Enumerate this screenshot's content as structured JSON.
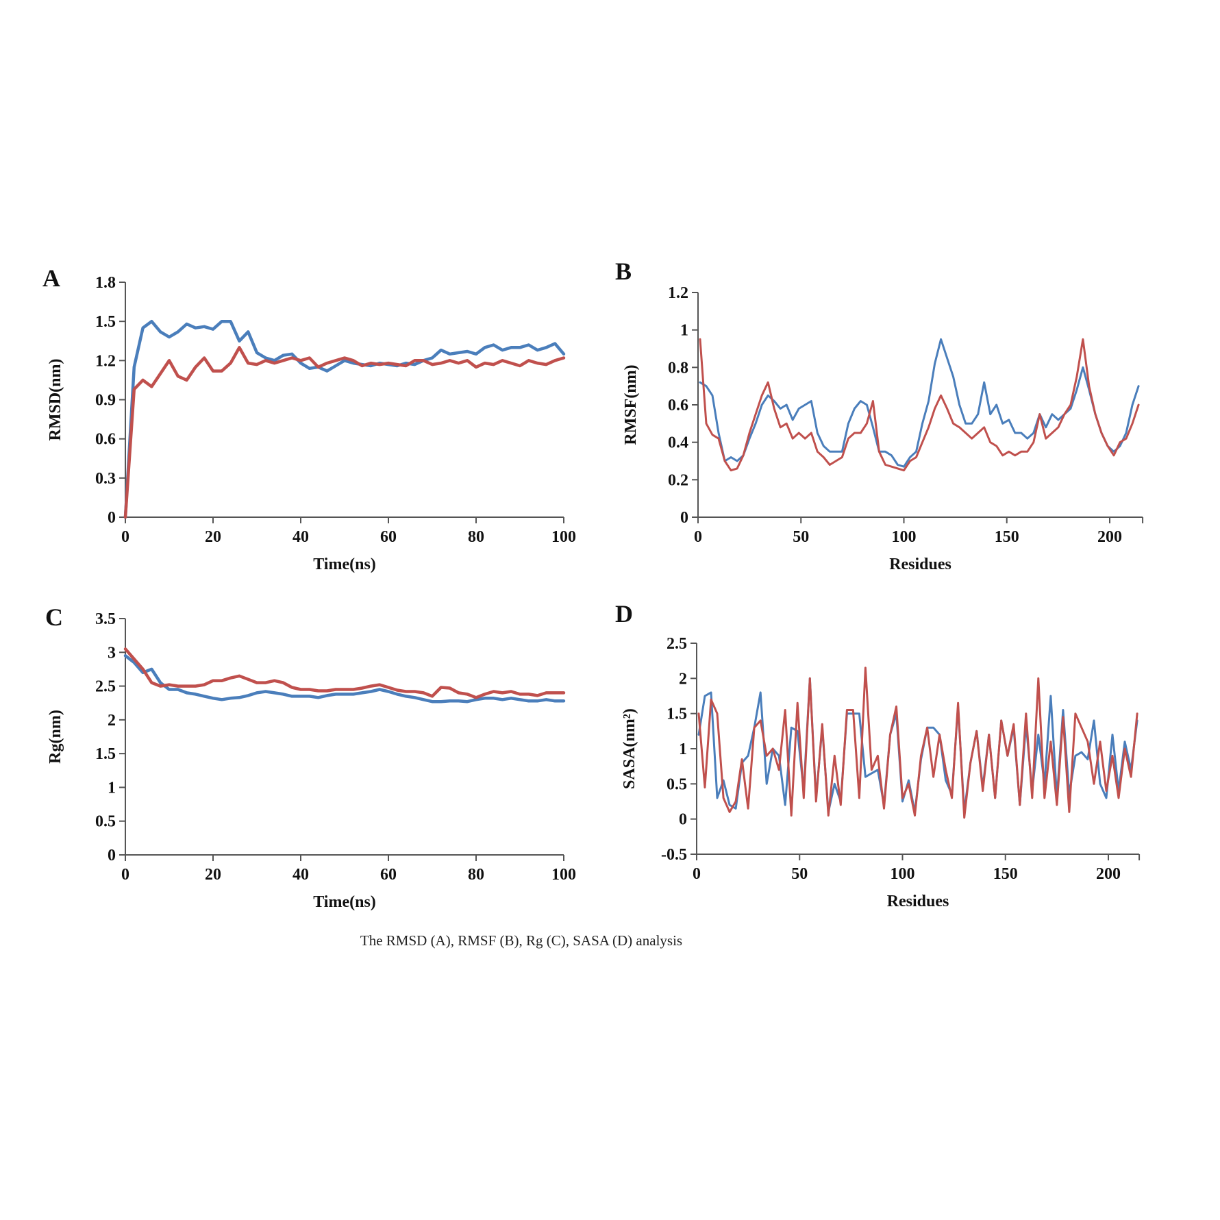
{
  "caption": "The RMSD (A), RMSF (B), Rg (C), SASA (D) analysis",
  "colors": {
    "series1": "#4a7ebb",
    "series2": "#c0504d",
    "axis": "#555555"
  },
  "chart_data": [
    {
      "panel": "A",
      "type": "line",
      "xlabel": "Time(ns)",
      "ylabel": "RMSD(nm)",
      "xlim": [
        0,
        100
      ],
      "ylim": [
        0,
        1.8
      ],
      "xticks": [
        "0",
        "20",
        "40",
        "60",
        "80",
        "100"
      ],
      "yticks": [
        "0",
        "0.3",
        "0.6",
        "0.9",
        "1.2",
        "1.5",
        "1.8"
      ],
      "x": [
        0,
        2,
        4,
        6,
        8,
        10,
        12,
        14,
        16,
        18,
        20,
        22,
        24,
        26,
        28,
        30,
        32,
        34,
        36,
        38,
        40,
        42,
        44,
        46,
        48,
        50,
        52,
        54,
        56,
        58,
        60,
        62,
        64,
        66,
        68,
        70,
        72,
        74,
        76,
        78,
        80,
        82,
        84,
        86,
        88,
        90,
        92,
        94,
        96,
        98,
        100
      ],
      "series": [
        {
          "name": "blue",
          "color": "#4a7ebb",
          "values": [
            0,
            1.15,
            1.45,
            1.5,
            1.42,
            1.38,
            1.42,
            1.48,
            1.45,
            1.46,
            1.44,
            1.5,
            1.5,
            1.35,
            1.42,
            1.26,
            1.22,
            1.2,
            1.24,
            1.25,
            1.18,
            1.14,
            1.15,
            1.12,
            1.16,
            1.2,
            1.18,
            1.17,
            1.16,
            1.18,
            1.17,
            1.16,
            1.18,
            1.17,
            1.2,
            1.22,
            1.28,
            1.25,
            1.26,
            1.27,
            1.25,
            1.3,
            1.32,
            1.28,
            1.3,
            1.3,
            1.32,
            1.28,
            1.3,
            1.33,
            1.25
          ]
        },
        {
          "name": "red",
          "color": "#c0504d",
          "values": [
            0,
            0.98,
            1.05,
            1.0,
            1.1,
            1.2,
            1.08,
            1.05,
            1.15,
            1.22,
            1.12,
            1.12,
            1.18,
            1.3,
            1.18,
            1.17,
            1.2,
            1.18,
            1.2,
            1.22,
            1.2,
            1.22,
            1.15,
            1.18,
            1.2,
            1.22,
            1.2,
            1.16,
            1.18,
            1.17,
            1.18,
            1.17,
            1.16,
            1.2,
            1.2,
            1.17,
            1.18,
            1.2,
            1.18,
            1.2,
            1.15,
            1.18,
            1.17,
            1.2,
            1.18,
            1.16,
            1.2,
            1.18,
            1.17,
            1.2,
            1.22
          ]
        }
      ]
    },
    {
      "panel": "B",
      "type": "line",
      "xlabel": "Residues",
      "ylabel": "RMSF(nm)",
      "xlim": [
        0,
        216
      ],
      "ylim": [
        0,
        1.2
      ],
      "xticks": [
        "0",
        "50",
        "100",
        "150",
        "200"
      ],
      "yticks": [
        "0",
        "0.2",
        "0.4",
        "0.6",
        "0.8",
        "1",
        "1.2"
      ],
      "x": [
        1,
        4,
        7,
        10,
        13,
        16,
        19,
        22,
        25,
        28,
        31,
        34,
        37,
        40,
        43,
        46,
        49,
        52,
        55,
        58,
        61,
        64,
        67,
        70,
        73,
        76,
        79,
        82,
        85,
        88,
        91,
        94,
        97,
        100,
        103,
        106,
        109,
        112,
        115,
        118,
        121,
        124,
        127,
        130,
        133,
        136,
        139,
        142,
        145,
        148,
        151,
        154,
        157,
        160,
        163,
        166,
        169,
        172,
        175,
        178,
        181,
        184,
        187,
        190,
        193,
        196,
        199,
        202,
        205,
        208,
        211,
        214
      ],
      "series": [
        {
          "name": "blue",
          "color": "#4a7ebb",
          "values": [
            0.72,
            0.7,
            0.65,
            0.45,
            0.3,
            0.32,
            0.3,
            0.33,
            0.42,
            0.5,
            0.6,
            0.65,
            0.62,
            0.58,
            0.6,
            0.52,
            0.58,
            0.6,
            0.62,
            0.45,
            0.38,
            0.35,
            0.35,
            0.35,
            0.5,
            0.58,
            0.62,
            0.6,
            0.48,
            0.35,
            0.35,
            0.33,
            0.28,
            0.27,
            0.32,
            0.35,
            0.5,
            0.62,
            0.82,
            0.95,
            0.85,
            0.75,
            0.6,
            0.5,
            0.5,
            0.55,
            0.72,
            0.55,
            0.6,
            0.5,
            0.52,
            0.45,
            0.45,
            0.42,
            0.45,
            0.55,
            0.48,
            0.55,
            0.52,
            0.55,
            0.58,
            0.68,
            0.8,
            0.68,
            0.55,
            0.45,
            0.38,
            0.35,
            0.38,
            0.45,
            0.6,
            0.7
          ]
        },
        {
          "name": "red",
          "color": "#c0504d",
          "values": [
            0.95,
            0.5,
            0.44,
            0.42,
            0.3,
            0.25,
            0.26,
            0.33,
            0.45,
            0.55,
            0.65,
            0.72,
            0.58,
            0.48,
            0.5,
            0.42,
            0.45,
            0.42,
            0.45,
            0.35,
            0.32,
            0.28,
            0.3,
            0.32,
            0.42,
            0.45,
            0.45,
            0.5,
            0.62,
            0.35,
            0.28,
            0.27,
            0.26,
            0.25,
            0.3,
            0.32,
            0.4,
            0.48,
            0.58,
            0.65,
            0.58,
            0.5,
            0.48,
            0.45,
            0.42,
            0.45,
            0.48,
            0.4,
            0.38,
            0.33,
            0.35,
            0.33,
            0.35,
            0.35,
            0.4,
            0.55,
            0.42,
            0.45,
            0.48,
            0.55,
            0.6,
            0.75,
            0.95,
            0.7,
            0.55,
            0.45,
            0.38,
            0.33,
            0.4,
            0.42,
            0.5,
            0.6
          ]
        }
      ]
    },
    {
      "panel": "C",
      "type": "line",
      "xlabel": "Time(ns)",
      "ylabel": "Rg(nm)",
      "xlim": [
        0,
        100
      ],
      "ylim": [
        0,
        3.5
      ],
      "xticks": [
        "0",
        "20",
        "40",
        "60",
        "80",
        "100"
      ],
      "yticks": [
        "0",
        "0.5",
        "1",
        "1.5",
        "2",
        "2.5",
        "3",
        "3.5"
      ],
      "x": [
        0,
        2,
        4,
        6,
        8,
        10,
        12,
        14,
        16,
        18,
        20,
        22,
        24,
        26,
        28,
        30,
        32,
        34,
        36,
        38,
        40,
        42,
        44,
        46,
        48,
        50,
        52,
        54,
        56,
        58,
        60,
        62,
        64,
        66,
        68,
        70,
        72,
        74,
        76,
        78,
        80,
        82,
        84,
        86,
        88,
        90,
        92,
        94,
        96,
        98,
        100
      ],
      "series": [
        {
          "name": "blue",
          "color": "#4a7ebb",
          "values": [
            2.95,
            2.85,
            2.7,
            2.75,
            2.55,
            2.45,
            2.45,
            2.4,
            2.38,
            2.35,
            2.32,
            2.3,
            2.32,
            2.33,
            2.36,
            2.4,
            2.42,
            2.4,
            2.38,
            2.35,
            2.35,
            2.35,
            2.33,
            2.36,
            2.38,
            2.38,
            2.38,
            2.4,
            2.42,
            2.45,
            2.42,
            2.38,
            2.35,
            2.33,
            2.3,
            2.27,
            2.27,
            2.28,
            2.28,
            2.27,
            2.3,
            2.32,
            2.32,
            2.3,
            2.32,
            2.3,
            2.28,
            2.28,
            2.3,
            2.28,
            2.28
          ]
        },
        {
          "name": "red",
          "color": "#c0504d",
          "values": [
            3.05,
            2.9,
            2.75,
            2.55,
            2.5,
            2.52,
            2.5,
            2.5,
            2.5,
            2.52,
            2.58,
            2.58,
            2.62,
            2.65,
            2.6,
            2.55,
            2.55,
            2.58,
            2.55,
            2.48,
            2.45,
            2.45,
            2.43,
            2.43,
            2.45,
            2.45,
            2.45,
            2.47,
            2.5,
            2.52,
            2.48,
            2.44,
            2.42,
            2.42,
            2.4,
            2.35,
            2.48,
            2.47,
            2.4,
            2.38,
            2.33,
            2.38,
            2.42,
            2.4,
            2.42,
            2.38,
            2.38,
            2.36,
            2.4,
            2.4,
            2.4
          ]
        }
      ]
    },
    {
      "panel": "D",
      "type": "line",
      "xlabel": "Residues",
      "ylabel": "SASA(nm²)",
      "xlim": [
        0,
        215
      ],
      "ylim": [
        -0.5,
        2.5
      ],
      "xticks": [
        "0",
        "50",
        "100",
        "150",
        "200"
      ],
      "yticks": [
        "-0.5",
        "0",
        "0.5",
        "1",
        "1.5",
        "2",
        "2.5"
      ],
      "x": [
        1,
        4,
        7,
        10,
        13,
        16,
        19,
        22,
        25,
        28,
        31,
        34,
        37,
        40,
        43,
        46,
        49,
        52,
        55,
        58,
        61,
        64,
        67,
        70,
        73,
        76,
        79,
        82,
        85,
        88,
        91,
        94,
        97,
        100,
        103,
        106,
        109,
        112,
        115,
        118,
        121,
        124,
        127,
        130,
        133,
        136,
        139,
        142,
        145,
        148,
        151,
        154,
        157,
        160,
        163,
        166,
        169,
        172,
        175,
        178,
        181,
        184,
        187,
        190,
        193,
        196,
        199,
        202,
        205,
        208,
        211,
        214
      ],
      "series": [
        {
          "name": "blue",
          "color": "#4a7ebb",
          "values": [
            1.2,
            1.75,
            1.8,
            0.3,
            0.55,
            0.2,
            0.15,
            0.8,
            0.9,
            1.3,
            1.8,
            0.5,
            1.0,
            0.9,
            0.2,
            1.3,
            1.25,
            0.4,
            2.0,
            0.3,
            1.3,
            0.1,
            0.5,
            0.25,
            1.5,
            1.5,
            1.5,
            0.6,
            0.65,
            0.7,
            0.2,
            1.2,
            1.5,
            0.25,
            0.55,
            0.1,
            0.85,
            1.3,
            1.3,
            1.2,
            0.55,
            0.35,
            1.6,
            0.1,
            0.8,
            1.25,
            0.45,
            1.2,
            0.3,
            1.4,
            0.9,
            1.3,
            0.2,
            1.35,
            0.4,
            1.2,
            0.5,
            1.75,
            0.3,
            1.55,
            0.35,
            0.9,
            0.95,
            0.85,
            1.4,
            0.5,
            0.3,
            1.2,
            0.4,
            1.1,
            0.7,
            1.4
          ]
        },
        {
          "name": "red",
          "color": "#c0504d",
          "values": [
            1.5,
            0.45,
            1.7,
            1.5,
            0.3,
            0.1,
            0.25,
            0.85,
            0.15,
            1.3,
            1.4,
            0.9,
            1.0,
            0.7,
            1.55,
            0.05,
            1.65,
            0.3,
            2.0,
            0.25,
            1.35,
            0.05,
            0.9,
            0.2,
            1.55,
            1.55,
            0.3,
            2.15,
            0.7,
            0.9,
            0.15,
            1.2,
            1.6,
            0.3,
            0.5,
            0.05,
            0.9,
            1.3,
            0.6,
            1.2,
            0.7,
            0.3,
            1.65,
            0.02,
            0.8,
            1.25,
            0.4,
            1.2,
            0.3,
            1.4,
            0.9,
            1.35,
            0.2,
            1.5,
            0.3,
            2.0,
            0.3,
            1.1,
            0.2,
            1.45,
            0.1,
            1.5,
            1.3,
            1.1,
            0.5,
            1.1,
            0.4,
            0.9,
            0.3,
            1.0,
            0.6,
            1.5
          ]
        }
      ]
    }
  ]
}
